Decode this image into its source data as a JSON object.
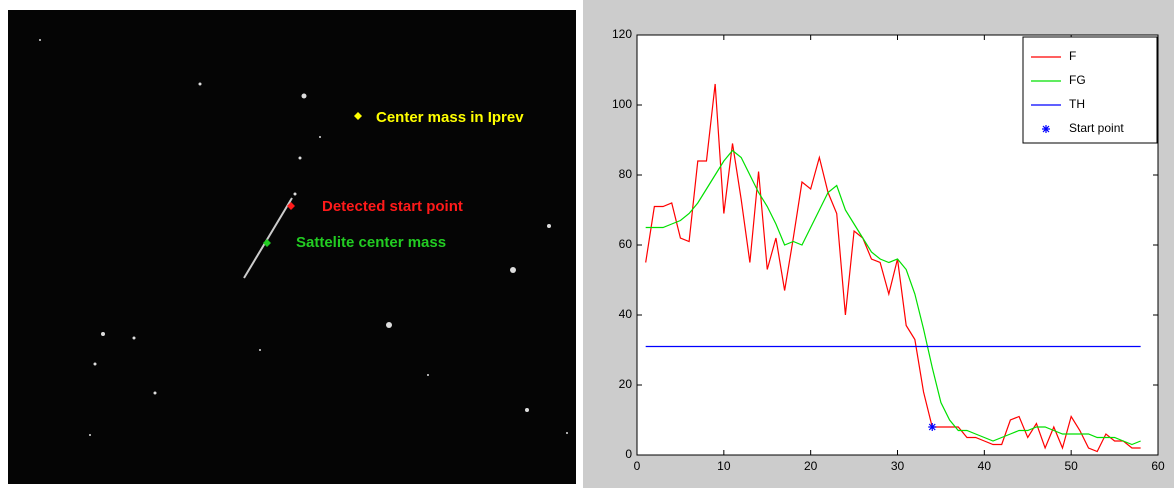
{
  "image": {
    "annotations": [
      {
        "text": "Center mass in Iprev",
        "color": "#ffff00"
      },
      {
        "text": "Detected start point",
        "color": "#ff1a1a"
      },
      {
        "text": "Sattelite center mass",
        "color": "#22cc22"
      }
    ]
  },
  "chart_data": {
    "type": "line",
    "xlim": [
      0,
      60
    ],
    "xticks": [
      0,
      10,
      20,
      30,
      40,
      50,
      60
    ],
    "ylim": [
      0,
      120
    ],
    "yticks": [
      0,
      20,
      40,
      60,
      80,
      100,
      120
    ],
    "legend": "upper right",
    "series": [
      {
        "name": "F",
        "color": "#ff0000",
        "x": [
          1,
          2,
          3,
          4,
          5,
          6,
          7,
          8,
          9,
          10,
          11,
          12,
          13,
          14,
          15,
          16,
          17,
          18,
          19,
          20,
          21,
          22,
          23,
          24,
          25,
          26,
          27,
          28,
          29,
          30,
          31,
          32,
          33,
          34,
          35,
          36,
          37,
          38,
          39,
          40,
          41,
          42,
          43,
          44,
          45,
          46,
          47,
          48,
          49,
          50,
          51,
          52,
          53,
          54,
          55,
          56,
          57,
          58
        ],
        "values": [
          55,
          71,
          71,
          72,
          62,
          61,
          84,
          84,
          106,
          69,
          89,
          73,
          55,
          81,
          53,
          62,
          47,
          62,
          78,
          76,
          85,
          75,
          69,
          40,
          64,
          62,
          56,
          55,
          46,
          56,
          37,
          33,
          18,
          8,
          8,
          8,
          8,
          5,
          5,
          4,
          3,
          3,
          10,
          11,
          5,
          9,
          2,
          8,
          2,
          11,
          7,
          2,
          1,
          6,
          4,
          4,
          2,
          2
        ]
      },
      {
        "name": "FG",
        "color": "#00e000",
        "x": [
          1,
          2,
          3,
          4,
          5,
          6,
          7,
          8,
          9,
          10,
          11,
          12,
          13,
          14,
          15,
          16,
          17,
          18,
          19,
          20,
          21,
          22,
          23,
          24,
          25,
          26,
          27,
          28,
          29,
          30,
          31,
          32,
          33,
          34,
          35,
          36,
          37,
          38,
          39,
          40,
          41,
          42,
          43,
          44,
          45,
          46,
          47,
          48,
          49,
          50,
          51,
          52,
          53,
          54,
          55,
          56,
          57,
          58
        ],
        "values": [
          65,
          65,
          65,
          66,
          67,
          69,
          72,
          76,
          80,
          84,
          87,
          85,
          80,
          75,
          71,
          66,
          60,
          61,
          60,
          65,
          70,
          75,
          77,
          70,
          66,
          62,
          58,
          56,
          55,
          56,
          53,
          46,
          36,
          25,
          15,
          10,
          7,
          7,
          6,
          5,
          4,
          5,
          6,
          7,
          7,
          8,
          8,
          7,
          6,
          6,
          6,
          6,
          5,
          5,
          5,
          4,
          3,
          4
        ]
      },
      {
        "name": "TH",
        "color": "#0000ff",
        "x": [
          1,
          58
        ],
        "values": [
          31,
          31
        ]
      },
      {
        "name": "Start point",
        "color": "#0000ff",
        "x": [
          34
        ],
        "values": [
          8
        ],
        "marker": "*"
      }
    ]
  }
}
